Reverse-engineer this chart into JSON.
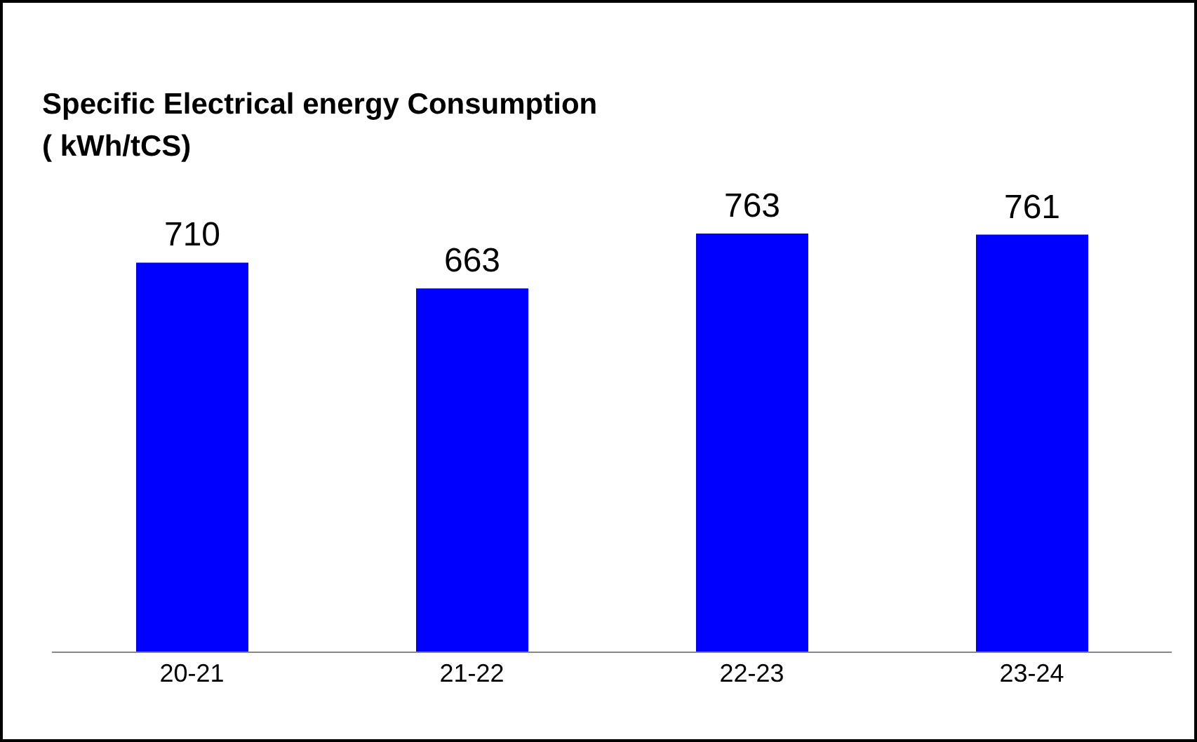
{
  "chart_data": {
    "type": "bar",
    "title": "Specific Electrical energy Consumption\n( kWh/tCS)",
    "categories": [
      "20-21",
      "21-22",
      "22-23",
      "23-24"
    ],
    "values": [
      710,
      663,
      763,
      761
    ],
    "color": "#0000ff",
    "data_labels": true,
    "tick_labels": "x"
  }
}
